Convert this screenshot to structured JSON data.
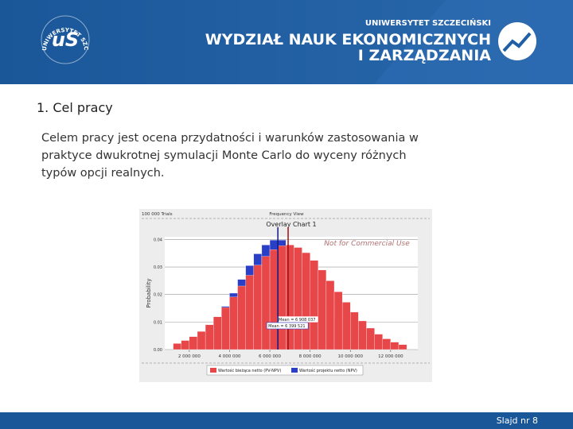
{
  "header": {
    "logo_initials": "uS",
    "logo_ring": "UNIWERSYTET SZCZECIŃSKI",
    "university": "UNIWERSYTET SZCZECIŃSKI",
    "faculty_line1": "WYDZIAŁ NAUK EKONOMICZNYCH",
    "faculty_line2": "I ZARZĄDZANIA"
  },
  "section_title": "1. Cel pracy",
  "body_lines": [
    "Celem pracy jest ocena przydatności i warunków zastosowania w",
    "praktyce dwukrotnej symulacji Monte Carlo do wyceny różnych",
    "typów opcji realnych."
  ],
  "chart_data": {
    "type": "histogram",
    "trials": "100 000 Trials",
    "view": "Frequency View",
    "title": "Overlay Chart 1",
    "watermark": "Not for Commercial Use",
    "y_label": "Probability",
    "bins": [
      1200000,
      1600000,
      2000000,
      2400000,
      2800000,
      3200000,
      3600000,
      4000000,
      4400000,
      4800000,
      5200000,
      5600000,
      6000000,
      6400000,
      6800000,
      7200000,
      7600000,
      8000000,
      8400000,
      8800000,
      9200000,
      9600000,
      10000000,
      10400000,
      10800000,
      11200000,
      11600000,
      12000000,
      12400000,
      12800000
    ],
    "series": [
      {
        "name": "Wartość bieżąca netto (PV-NPV)",
        "color": "#e8474a",
        "values": [
          0.0022,
          0.0033,
          0.0047,
          0.0066,
          0.009,
          0.0119,
          0.0153,
          0.0191,
          0.0231,
          0.027,
          0.0307,
          0.0339,
          0.0363,
          0.0377,
          0.038,
          0.0371,
          0.0352,
          0.0324,
          0.0289,
          0.025,
          0.021,
          0.0172,
          0.0136,
          0.0104,
          0.0078,
          0.0056,
          0.0039,
          0.0027,
          0.0018
        ],
        "mean": 6908037,
        "mean_label": "Mean = 6 908 037"
      },
      {
        "name": "Wartość projektu netto (NPV)",
        "color": "#2a3fc8",
        "values": [
          0.0013,
          0.0021,
          0.0035,
          0.0054,
          0.0081,
          0.0115,
          0.0157,
          0.0205,
          0.0255,
          0.0305,
          0.0348,
          0.038,
          0.0398,
          0.0398,
          0.038,
          0.0348,
          0.0305,
          0.0255,
          0.0205,
          0.0157,
          0.0115,
          0.0081,
          0.0054,
          0.0035,
          0.0021,
          0.0013,
          0.0007,
          0.0004,
          0.0002
        ],
        "mean": 6399521,
        "mean_label": "Mean = 6 399 521"
      }
    ],
    "xlim": [
      780000,
      13350000
    ],
    "xticks": [
      {
        "value": 2000000,
        "label": "2 000 000"
      },
      {
        "value": 4000000,
        "label": "4 000 000"
      },
      {
        "value": 6000000,
        "label": "6 000 000"
      },
      {
        "value": 8000000,
        "label": "8 000 000"
      },
      {
        "value": 10000000,
        "label": "10 000 000"
      },
      {
        "value": 12000000,
        "label": "12 000 000"
      }
    ],
    "ylim": [
      0,
      0.041
    ],
    "yticks": [
      {
        "value": 0,
        "label": "0.00"
      },
      {
        "value": 0.01,
        "label": "0.01"
      },
      {
        "value": 0.02,
        "label": "0.02"
      },
      {
        "value": 0.03,
        "label": "0.03"
      },
      {
        "value": 0.04,
        "label": "0.04"
      }
    ],
    "grid": true
  },
  "footer": "Slajd nr 8"
}
